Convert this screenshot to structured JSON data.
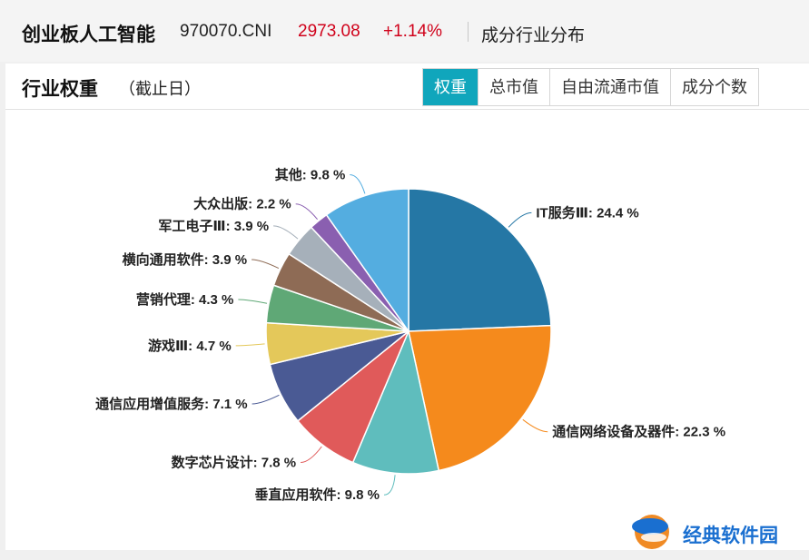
{
  "header": {
    "index_name": "创业板人工智能",
    "index_code": "970070.CNI",
    "price": "2973.08",
    "change_pct": "+1.14%",
    "section": "成分行业分布"
  },
  "panel": {
    "title": "行业权重",
    "note": "（截止日）",
    "tabs": [
      {
        "label": "权重",
        "active": true
      },
      {
        "label": "总市值",
        "active": false
      },
      {
        "label": "自由流通市值",
        "active": false
      },
      {
        "label": "成分个数",
        "active": false
      }
    ]
  },
  "colors": {
    "price_up": "#d0021b",
    "tab_active": "#10a6bc"
  },
  "chart_data": {
    "type": "pie",
    "unit": "%",
    "slices": [
      {
        "label": "IT服务Ⅲ",
        "value": 24.4,
        "color": "#2577a5"
      },
      {
        "label": "通信网络设备及器件",
        "value": 22.3,
        "color": "#f58a1c"
      },
      {
        "label": "垂直应用软件",
        "value": 9.8,
        "color": "#5fbdbd"
      },
      {
        "label": "数字芯片设计",
        "value": 7.8,
        "color": "#e05a5a"
      },
      {
        "label": "通信应用增值服务",
        "value": 7.1,
        "color": "#4a5a94"
      },
      {
        "label": "游戏Ⅲ",
        "value": 4.7,
        "color": "#e4c85a"
      },
      {
        "label": "营销代理",
        "value": 4.3,
        "color": "#5fa876"
      },
      {
        "label": "横向通用软件",
        "value": 3.9,
        "color": "#8e6b55"
      },
      {
        "label": "军工电子Ⅲ",
        "value": 3.9,
        "color": "#a6b0ba"
      },
      {
        "label": "大众出版",
        "value": 2.2,
        "color": "#8a5fb0"
      },
      {
        "label": "其他",
        "value": 9.8,
        "color": "#54ade0"
      }
    ]
  },
  "watermark": {
    "text": "经典软件园"
  }
}
